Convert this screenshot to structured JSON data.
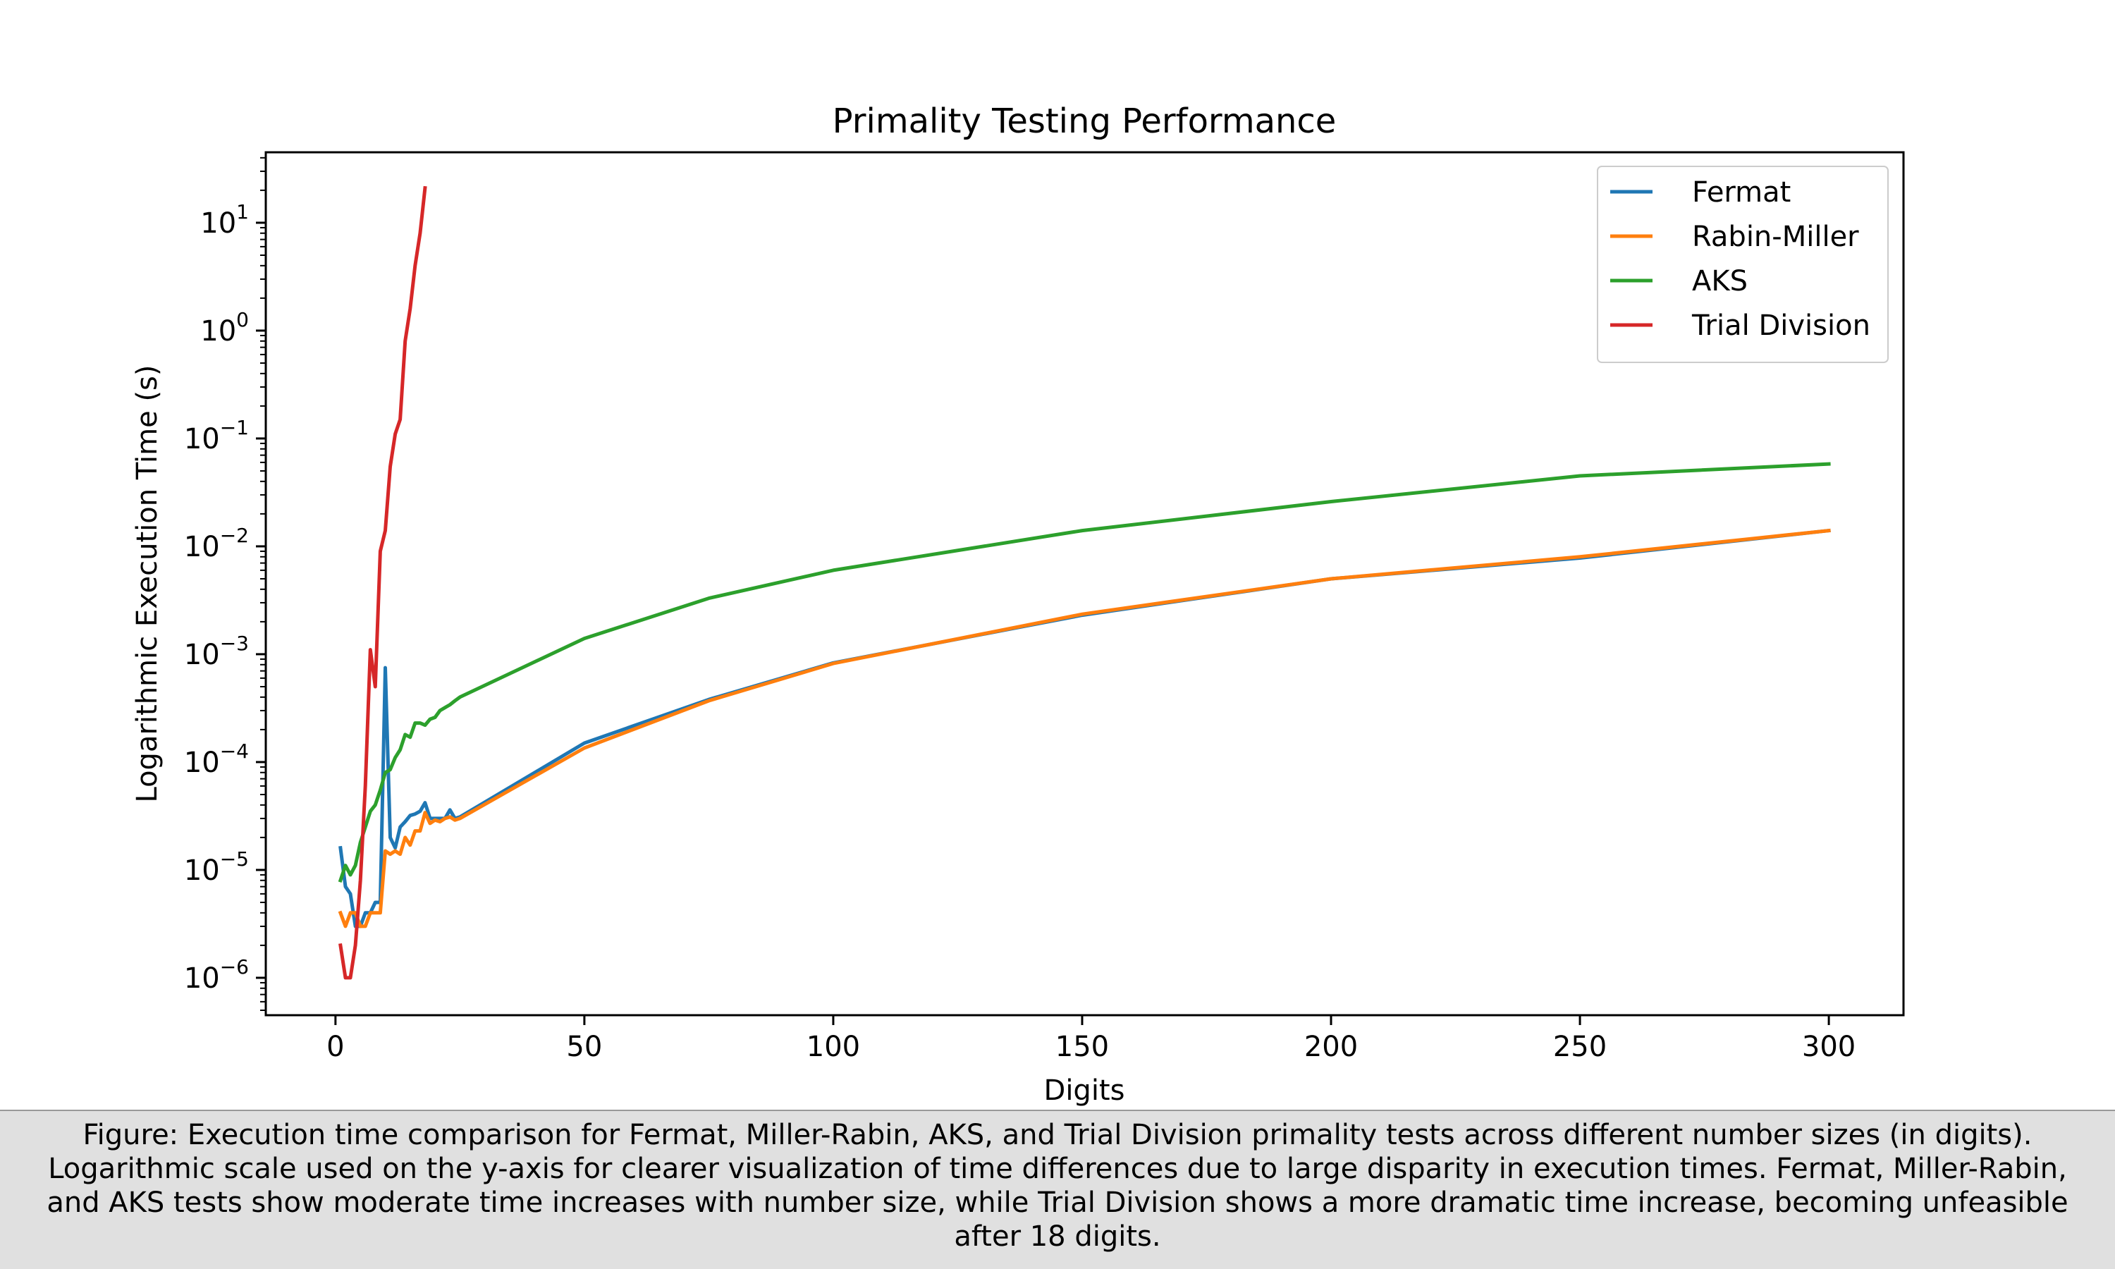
{
  "chart_data": {
    "type": "line",
    "title": "Primality Testing Performance",
    "xlabel": "Digits",
    "ylabel": "Logarithmic Execution Time (s)",
    "xlim": [
      -14,
      315
    ],
    "ylim": [
      4.5e-07,
      45
    ],
    "yscale": "log",
    "grid": false,
    "legend_position": "top-right",
    "x_ticks": [
      0,
      50,
      100,
      150,
      200,
      250,
      300
    ],
    "y_ticks": [
      {
        "value": 1e-06,
        "base": "10",
        "exp": "−6"
      },
      {
        "value": 1e-05,
        "base": "10",
        "exp": "−5"
      },
      {
        "value": 0.0001,
        "base": "10",
        "exp": "−4"
      },
      {
        "value": 0.001,
        "base": "10",
        "exp": "−3"
      },
      {
        "value": 0.01,
        "base": "10",
        "exp": "−2"
      },
      {
        "value": 0.1,
        "base": "10",
        "exp": "−1"
      },
      {
        "value": 1,
        "base": "10",
        "exp": "0"
      },
      {
        "value": 10,
        "base": "10",
        "exp": "1"
      }
    ],
    "series": [
      {
        "name": "Fermat",
        "color": "#1f77b4",
        "x": [
          1,
          2,
          3,
          4,
          5,
          6,
          7,
          8,
          9,
          10,
          11,
          12,
          13,
          14,
          15,
          16,
          17,
          18,
          19,
          20,
          21,
          22,
          23,
          24,
          25,
          50,
          75,
          100,
          150,
          200,
          250,
          300
        ],
        "y": [
          1.6e-05,
          7e-06,
          6e-06,
          3e-06,
          3e-06,
          4e-06,
          4e-06,
          5e-06,
          5e-06,
          0.00075,
          2e-05,
          1.6e-05,
          2.5e-05,
          2.8e-05,
          3.2e-05,
          3.3e-05,
          3.5e-05,
          4.2e-05,
          3e-05,
          3e-05,
          3e-05,
          3e-05,
          3.6e-05,
          3e-05,
          3.1e-05,
          0.00015,
          0.00038,
          0.00083,
          0.0023,
          0.005,
          0.0078,
          0.014
        ]
      },
      {
        "name": "Rabin-Miller",
        "color": "#ff7f0e",
        "x": [
          1,
          2,
          3,
          4,
          5,
          6,
          7,
          8,
          9,
          10,
          11,
          12,
          13,
          14,
          15,
          16,
          17,
          18,
          19,
          20,
          21,
          22,
          23,
          24,
          25,
          50,
          75,
          100,
          150,
          200,
          250,
          300
        ],
        "y": [
          4e-06,
          3e-06,
          4e-06,
          4e-06,
          3e-06,
          3e-06,
          4e-06,
          4e-06,
          4e-06,
          1.5e-05,
          1.4e-05,
          1.5e-05,
          1.4e-05,
          2e-05,
          1.7e-05,
          2.3e-05,
          2.3e-05,
          3.4e-05,
          2.7e-05,
          2.9e-05,
          2.8e-05,
          3e-05,
          3.1e-05,
          2.9e-05,
          3e-05,
          0.000135,
          0.00037,
          0.00082,
          0.00235,
          0.005,
          0.008,
          0.014
        ]
      },
      {
        "name": "AKS",
        "color": "#2ca02c",
        "x": [
          1,
          2,
          3,
          4,
          5,
          6,
          7,
          8,
          9,
          10,
          11,
          12,
          13,
          14,
          15,
          16,
          17,
          18,
          19,
          20,
          21,
          22,
          23,
          24,
          25,
          50,
          75,
          100,
          150,
          200,
          250,
          300
        ],
        "y": [
          8e-06,
          1.1e-05,
          9e-06,
          1.1e-05,
          1.8e-05,
          2.5e-05,
          3.5e-05,
          4e-05,
          5.5e-05,
          8e-05,
          8.5e-05,
          0.00011,
          0.00013,
          0.00018,
          0.00017,
          0.00023,
          0.00023,
          0.00022,
          0.00025,
          0.00026,
          0.0003,
          0.00032,
          0.00034,
          0.00037,
          0.0004,
          0.0014,
          0.0033,
          0.006,
          0.014,
          0.026,
          0.045,
          0.058
        ]
      },
      {
        "name": "Trial Division",
        "color": "#d62728",
        "x": [
          1,
          2,
          3,
          4,
          5,
          6,
          7,
          8,
          9,
          10,
          11,
          12,
          13,
          14,
          15,
          16,
          17,
          18
        ],
        "y": [
          2e-06,
          1e-06,
          1e-06,
          2e-06,
          8e-06,
          6e-05,
          0.0011,
          0.0005,
          0.009,
          0.014,
          0.055,
          0.11,
          0.15,
          0.8,
          1.6,
          4,
          8,
          21
        ]
      }
    ]
  },
  "caption": {
    "lines": [
      "Figure: Execution time comparison for Fermat, Miller-Rabin, AKS, and Trial Division primality tests across different number sizes (in digits).",
      "Logarithmic scale used on the y-axis for clearer visualization of time differences due to large disparity in execution times. Fermat, Miller-Rabin,",
      "and AKS tests show moderate time increases with number size, while Trial Division shows a more dramatic time increase, becoming unfeasible",
      "after 18 digits."
    ]
  }
}
